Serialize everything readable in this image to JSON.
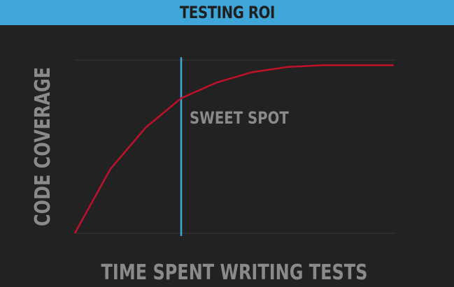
{
  "slide": {
    "title": "TESTING ROI",
    "colors": {
      "title_bar": "#3ea6d8",
      "background": "#222222",
      "curve": "#c0112a",
      "marker_line": "#3ea6d8",
      "text": "#8a8a8a"
    }
  },
  "chart_data": {
    "type": "line",
    "title": "TESTING ROI",
    "xlabel": "TIME SPENT WRITING TESTS",
    "ylabel": "CODE COVERAGE",
    "grid": false,
    "series": [
      {
        "values": [
          [
            0,
            0
          ],
          [
            1,
            0.37
          ],
          [
            2,
            0.61
          ],
          [
            3,
            0.78
          ],
          [
            4,
            0.87
          ],
          [
            5,
            0.93
          ],
          [
            6,
            0.96
          ],
          [
            7,
            0.97
          ],
          [
            8,
            0.97
          ],
          [
            9,
            0.97
          ]
        ]
      }
    ],
    "xlim": [
      0,
      9
    ],
    "ylim": [
      0,
      1
    ],
    "marker": {
      "x": 3,
      "label": "SWEET SPOT"
    }
  }
}
